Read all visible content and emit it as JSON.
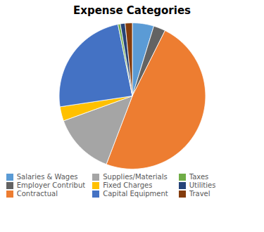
{
  "chart_data": {
    "type": "pie",
    "title": "Expense Categories",
    "categories": [
      "Salaries & Wages",
      "Employer Contribut",
      "Contractual",
      "Supplies/Materials",
      "Fixed Charges",
      "Capital Equipment",
      "Taxes",
      "Utilities",
      "Travel"
    ],
    "values": [
      4.5,
      2.5,
      46.0,
      13.0,
      3.0,
      23.0,
      0.5,
      1.0,
      1.5
    ],
    "colors": [
      "#5B9BD5",
      "#636363",
      "#ED7D31",
      "#A5A5A5",
      "#FFC000",
      "#4472C4",
      "#70AD47",
      "#264478",
      "#843C0C"
    ],
    "legend": "bottom"
  }
}
